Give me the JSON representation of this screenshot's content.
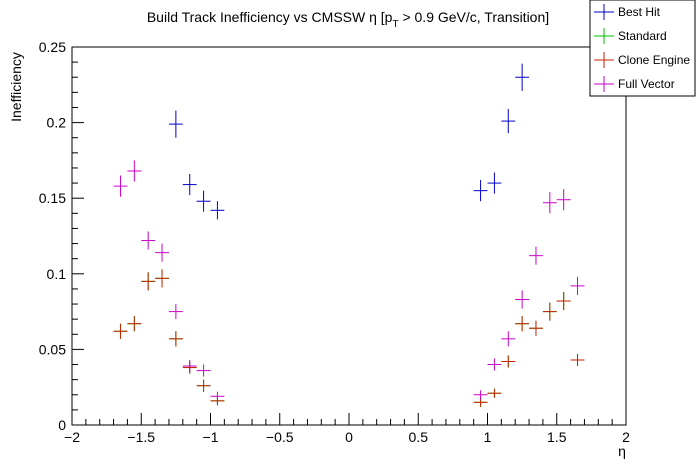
{
  "chart_data": {
    "type": "scatter",
    "title": "Build Track Inefficiency vs CMSSW η [p_T > 0.9 GeV/c, Transition]",
    "title_parts": {
      "prefix": "Build Track Inefficiency vs CMSSW η [p",
      "sub": "T",
      "suffix": " > 0.9 GeV/c, Transition]"
    },
    "xlabel": "η",
    "ylabel": "Inefficiency",
    "xlim": [
      -2,
      2
    ],
    "ylim": [
      0,
      0.25
    ],
    "x_tick_labels": [
      "−2",
      "−1.5",
      "−1",
      "−0.5",
      "0",
      "0.5",
      "1",
      "1.5",
      "2"
    ],
    "x_tick_values": [
      -2,
      -1.5,
      -1,
      -0.5,
      0,
      0.5,
      1,
      1.5,
      2
    ],
    "y_tick_labels": [
      "0",
      "0.05",
      "0.1",
      "0.15",
      "0.2",
      "0.25"
    ],
    "y_tick_values": [
      0,
      0.05,
      0.1,
      0.15,
      0.2,
      0.25
    ],
    "grid": false,
    "legend_position": "top-right",
    "x_bin_half_width": 0.05,
    "series": [
      {
        "name": "Best Hit",
        "color": "#0000cc",
        "points": [
          {
            "x": -1.25,
            "y": 0.199,
            "err": 0.009
          },
          {
            "x": -1.15,
            "y": 0.159,
            "err": 0.007
          },
          {
            "x": -1.05,
            "y": 0.148,
            "err": 0.007
          },
          {
            "x": -0.95,
            "y": 0.142,
            "err": 0.006
          },
          {
            "x": 0.95,
            "y": 0.155,
            "err": 0.007
          },
          {
            "x": 1.05,
            "y": 0.16,
            "err": 0.007
          },
          {
            "x": 1.15,
            "y": 0.201,
            "err": 0.008
          },
          {
            "x": 1.25,
            "y": 0.23,
            "err": 0.009
          }
        ]
      },
      {
        "name": "Standard",
        "color": "#00bb00",
        "points": [
          {
            "x": -1.65,
            "y": 0.062,
            "err": 0.005
          },
          {
            "x": -1.55,
            "y": 0.067,
            "err": 0.005
          },
          {
            "x": -1.45,
            "y": 0.095,
            "err": 0.006
          },
          {
            "x": -1.35,
            "y": 0.097,
            "err": 0.006
          },
          {
            "x": -1.25,
            "y": 0.057,
            "err": 0.005
          },
          {
            "x": -1.15,
            "y": 0.038,
            "err": 0.004
          },
          {
            "x": -1.05,
            "y": 0.026,
            "err": 0.004
          },
          {
            "x": -0.95,
            "y": 0.016,
            "err": 0.003
          },
          {
            "x": 0.95,
            "y": 0.015,
            "err": 0.003
          },
          {
            "x": 1.05,
            "y": 0.021,
            "err": 0.003
          },
          {
            "x": 1.15,
            "y": 0.042,
            "err": 0.004
          },
          {
            "x": 1.25,
            "y": 0.067,
            "err": 0.005
          },
          {
            "x": 1.35,
            "y": 0.064,
            "err": 0.005
          },
          {
            "x": 1.45,
            "y": 0.075,
            "err": 0.006
          },
          {
            "x": 1.55,
            "y": 0.082,
            "err": 0.006
          },
          {
            "x": 1.65,
            "y": 0.043,
            "err": 0.004
          }
        ]
      },
      {
        "name": "Clone Engine",
        "color": "#cc2200",
        "points": [
          {
            "x": -1.65,
            "y": 0.062,
            "err": 0.005
          },
          {
            "x": -1.55,
            "y": 0.067,
            "err": 0.005
          },
          {
            "x": -1.45,
            "y": 0.095,
            "err": 0.006
          },
          {
            "x": -1.35,
            "y": 0.097,
            "err": 0.006
          },
          {
            "x": -1.25,
            "y": 0.057,
            "err": 0.005
          },
          {
            "x": -1.15,
            "y": 0.038,
            "err": 0.004
          },
          {
            "x": -1.05,
            "y": 0.026,
            "err": 0.004
          },
          {
            "x": -0.95,
            "y": 0.016,
            "err": 0.003
          },
          {
            "x": 0.95,
            "y": 0.015,
            "err": 0.003
          },
          {
            "x": 1.05,
            "y": 0.021,
            "err": 0.003
          },
          {
            "x": 1.15,
            "y": 0.042,
            "err": 0.004
          },
          {
            "x": 1.25,
            "y": 0.067,
            "err": 0.005
          },
          {
            "x": 1.35,
            "y": 0.064,
            "err": 0.005
          },
          {
            "x": 1.45,
            "y": 0.075,
            "err": 0.006
          },
          {
            "x": 1.55,
            "y": 0.082,
            "err": 0.006
          },
          {
            "x": 1.65,
            "y": 0.043,
            "err": 0.004
          }
        ]
      },
      {
        "name": "Full Vector",
        "color": "#cc00cc",
        "points": [
          {
            "x": -1.65,
            "y": 0.158,
            "err": 0.007
          },
          {
            "x": -1.55,
            "y": 0.168,
            "err": 0.007
          },
          {
            "x": -1.45,
            "y": 0.122,
            "err": 0.006
          },
          {
            "x": -1.35,
            "y": 0.114,
            "err": 0.006
          },
          {
            "x": -1.25,
            "y": 0.075,
            "err": 0.005
          },
          {
            "x": -1.15,
            "y": 0.039,
            "err": 0.004
          },
          {
            "x": -1.05,
            "y": 0.036,
            "err": 0.004
          },
          {
            "x": -0.95,
            "y": 0.019,
            "err": 0.003
          },
          {
            "x": 0.95,
            "y": 0.02,
            "err": 0.003
          },
          {
            "x": 1.05,
            "y": 0.04,
            "err": 0.004
          },
          {
            "x": 1.15,
            "y": 0.057,
            "err": 0.005
          },
          {
            "x": 1.25,
            "y": 0.083,
            "err": 0.006
          },
          {
            "x": 1.35,
            "y": 0.112,
            "err": 0.006
          },
          {
            "x": 1.45,
            "y": 0.147,
            "err": 0.007
          },
          {
            "x": 1.55,
            "y": 0.149,
            "err": 0.007
          },
          {
            "x": 1.65,
            "y": 0.092,
            "err": 0.006
          }
        ]
      }
    ]
  }
}
